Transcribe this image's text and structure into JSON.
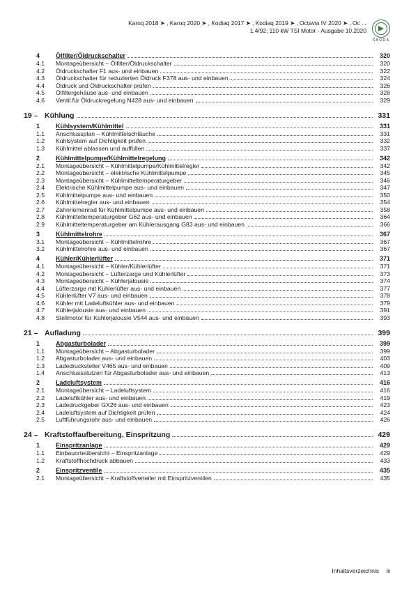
{
  "header": {
    "line1": "Karoq 2018 ➤ , Karoq 2020 ➤ , Kodiaq 2017 ➤ , Kodiaq 2019 ➤ , Octavia IV 2020 ➤ , Oc ...",
    "line2": "1,4/92; 110 kW TSI Motor - Ausgabe 10.2020",
    "brand": "ŠKODA"
  },
  "footer": {
    "label": "Inhaltsverzeichnis",
    "page": "iii"
  },
  "toc": [
    {
      "type": "section",
      "num": "4",
      "label": "Ölfilter/Öldruckschalter",
      "page": "320",
      "u": true
    },
    {
      "type": "sub",
      "num": "4.1",
      "label": "Montageübersicht – Ölfilter/Öldruckschalter",
      "page": "320"
    },
    {
      "type": "sub",
      "num": "4.2",
      "label": "Öldruckschalter F1 aus- und einbauen",
      "page": "322"
    },
    {
      "type": "sub",
      "num": "4.3",
      "label": "Öldruckschalter für reduzierten Öldruck F378 aus- und einbauen",
      "page": "324"
    },
    {
      "type": "sub",
      "num": "4.4",
      "label": "Öldruck und Öldruckschalter prüfen",
      "page": "326"
    },
    {
      "type": "sub",
      "num": "4.5",
      "label": "Ölfiltergehäuse aus- und einbauen",
      "page": "328"
    },
    {
      "type": "sub",
      "num": "4.6",
      "label": "Ventil für Öldruckregelung N428 aus- und einbauen",
      "page": "329"
    },
    {
      "type": "chapter",
      "num": "19 –",
      "label": "Kühlung",
      "page": "331"
    },
    {
      "type": "section",
      "num": "1",
      "label": "Kühlsystem/Kühlmittel",
      "page": "331",
      "u": true
    },
    {
      "type": "sub",
      "num": "1.1",
      "label": "Anschlussplan – Kühlmittelschläuche",
      "page": "331"
    },
    {
      "type": "sub",
      "num": "1.2",
      "label": "Kühlsystem auf Dichtigkeit prüfen",
      "page": "332"
    },
    {
      "type": "sub",
      "num": "1.3",
      "label": "Kühlmittel ablassen und auffüllen",
      "page": "337"
    },
    {
      "type": "section",
      "num": "2",
      "label": "Kühlmittelpumpe/Kühlmittelregelung",
      "page": "342",
      "u": true
    },
    {
      "type": "sub",
      "num": "2.1",
      "label": "Montageübersicht – Kühlmittelpumpe/Kühlmittelregler",
      "page": "342"
    },
    {
      "type": "sub",
      "num": "2.2",
      "label": "Montageübersicht – elektrische Kühlmittelpumpe",
      "page": "345"
    },
    {
      "type": "sub",
      "num": "2.3",
      "label": "Montageübersicht – Kühlmitteltemperaturgeber",
      "page": "346"
    },
    {
      "type": "sub",
      "num": "2.4",
      "label": "Elektrische Kühlmittelpumpe aus- und einbauen",
      "page": "347"
    },
    {
      "type": "sub",
      "num": "2.5",
      "label": "Kühlmittelpumpe aus- und einbauen",
      "page": "350"
    },
    {
      "type": "sub",
      "num": "2.6",
      "label": "Kühlmittelregler aus- und einbauen",
      "page": "354"
    },
    {
      "type": "sub",
      "num": "2.7",
      "label": "Zahnriemenrad für Kühlmittelpumpe aus- und einbauen",
      "page": "358"
    },
    {
      "type": "sub",
      "num": "2.8",
      "label": "Kühlmitteltemperaturgeber G62 aus- und einbauen",
      "page": "364"
    },
    {
      "type": "sub",
      "num": "2.9",
      "label": "Kühlmitteltemperaturgeber am Kühlerausgang G83 aus- und einbauen",
      "page": "366"
    },
    {
      "type": "section",
      "num": "3",
      "label": "Kühlmittelrohre",
      "page": "367",
      "u": true
    },
    {
      "type": "sub",
      "num": "3.1",
      "label": "Montageübersicht – Kühlmittelrohre",
      "page": "367"
    },
    {
      "type": "sub",
      "num": "3.2",
      "label": "Kühlmittelrohre aus- und einbauen",
      "page": "367"
    },
    {
      "type": "section",
      "num": "4",
      "label": "Kühler/Kühlerlüfter",
      "page": "371",
      "u": true
    },
    {
      "type": "sub",
      "num": "4.1",
      "label": "Montageübersicht – Kühler/Kühlerlüfter",
      "page": "371"
    },
    {
      "type": "sub",
      "num": "4.2",
      "label": "Montageübersicht – Lüfterzarge und Kühlerlüfter",
      "page": "373"
    },
    {
      "type": "sub",
      "num": "4.3",
      "label": "Montageübersicht – Kühlerjalousie",
      "page": "374"
    },
    {
      "type": "sub",
      "num": "4.4",
      "label": "Lüfterzarge mit Kühlerlüfter aus- und einbauen",
      "page": "377"
    },
    {
      "type": "sub",
      "num": "4.5",
      "label": "Kühlerlüfter V7 aus- und einbauen",
      "page": "378"
    },
    {
      "type": "sub",
      "num": "4.6",
      "label": "Kühler mit Ladeluftkühler aus- und einbauen",
      "page": "379"
    },
    {
      "type": "sub",
      "num": "4.7",
      "label": "Kühlerjalousie aus- und einbauen",
      "page": "391"
    },
    {
      "type": "sub",
      "num": "4.8",
      "label": "Stellmotor für Kühlerjalousie V544 aus- und einbauen",
      "page": "393"
    },
    {
      "type": "chapter",
      "num": "21 –",
      "label": "Aufladung",
      "page": "399"
    },
    {
      "type": "section",
      "num": "1",
      "label": "Abgasturbolader",
      "page": "399",
      "u": true
    },
    {
      "type": "sub",
      "num": "1.1",
      "label": "Montageübersicht – Abgasturbolader",
      "page": "399"
    },
    {
      "type": "sub",
      "num": "1.2",
      "label": "Abgasturbolader aus- und einbauen",
      "page": "403"
    },
    {
      "type": "sub",
      "num": "1.3",
      "label": "Ladedrucksteller V465 aus- und einbauen",
      "page": "409"
    },
    {
      "type": "sub",
      "num": "1.4",
      "label": "Anschlussstutzen für Abgasturbolader aus- und einbauen",
      "page": "413"
    },
    {
      "type": "section",
      "num": "2",
      "label": "Ladeluftsystem",
      "page": "416",
      "u": true
    },
    {
      "type": "sub",
      "num": "2.1",
      "label": "Montageübersicht – Ladeluftsystem",
      "page": "416"
    },
    {
      "type": "sub",
      "num": "2.2",
      "label": "Ladeluftkühler aus- und einbauen",
      "page": "419"
    },
    {
      "type": "sub",
      "num": "2.3",
      "label": "Ladedruckgeber GX26 aus- und einbauen",
      "page": "423"
    },
    {
      "type": "sub",
      "num": "2.4",
      "label": "Ladeluftsystem auf Dichtigkeit prüfen",
      "page": "424"
    },
    {
      "type": "sub",
      "num": "2.5",
      "label": "Luftführungsrohr aus- und einbauen",
      "page": "426"
    },
    {
      "type": "chapter",
      "num": "24 –",
      "label": "Kraftstoffaufbereitung, Einspritzung",
      "page": "429"
    },
    {
      "type": "section",
      "num": "1",
      "label": "Einspritzanlage",
      "page": "429",
      "u": true
    },
    {
      "type": "sub",
      "num": "1.1",
      "label": "Einbauorteübersicht – Einspritzanlage",
      "page": "429"
    },
    {
      "type": "sub",
      "num": "1.2",
      "label": "Kraftstoffhochdruck abbauen",
      "page": "433"
    },
    {
      "type": "section",
      "num": "2",
      "label": "Einspritzventile",
      "page": "435",
      "u": true
    },
    {
      "type": "sub",
      "num": "2.1",
      "label": "Montageübersicht – Kraftstoffverteiler mit Einspritzventilen",
      "page": "435"
    }
  ]
}
